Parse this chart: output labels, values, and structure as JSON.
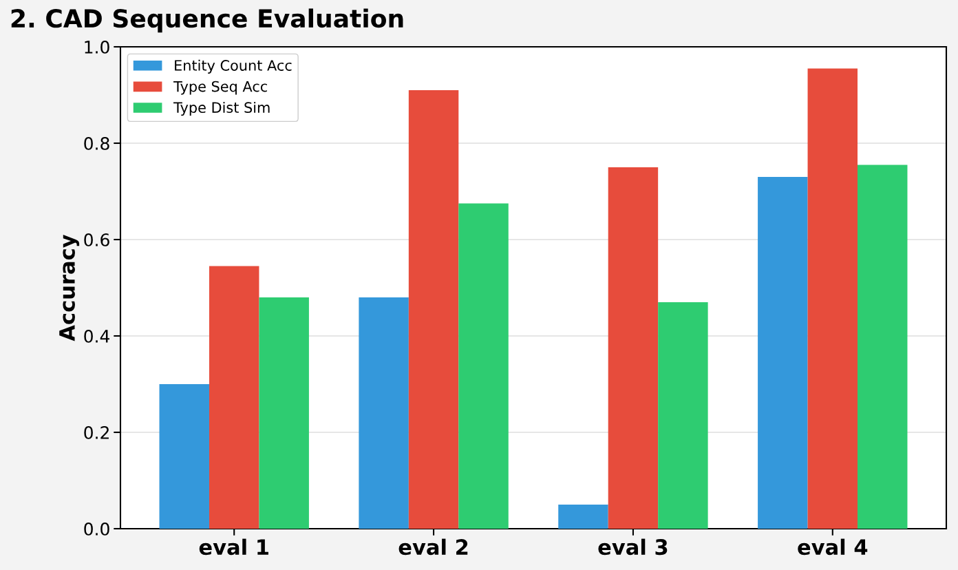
{
  "chart_data": {
    "type": "bar",
    "title": "2. CAD Sequence Evaluation",
    "ylabel": "Accuracy",
    "categories": [
      "eval 1",
      "eval 2",
      "eval 3",
      "eval 4"
    ],
    "series": [
      {
        "name": "Entity Count Acc",
        "color": "#3498db",
        "values": [
          0.3,
          0.48,
          0.05,
          0.73
        ]
      },
      {
        "name": "Type Seq Acc",
        "color": "#e74c3c",
        "values": [
          0.545,
          0.91,
          0.75,
          0.955
        ]
      },
      {
        "name": "Type Dist Sim",
        "color": "#2ecc71",
        "values": [
          0.48,
          0.675,
          0.47,
          0.755
        ]
      }
    ],
    "ylim": [
      0,
      1.0
    ],
    "yticks": [
      {
        "value": 0,
        "label": "0.0"
      },
      0.2,
      0.4,
      0.6,
      0.8,
      {
        "value": 1,
        "label": "1.0"
      }
    ],
    "grid": "y",
    "legend": "top left"
  }
}
